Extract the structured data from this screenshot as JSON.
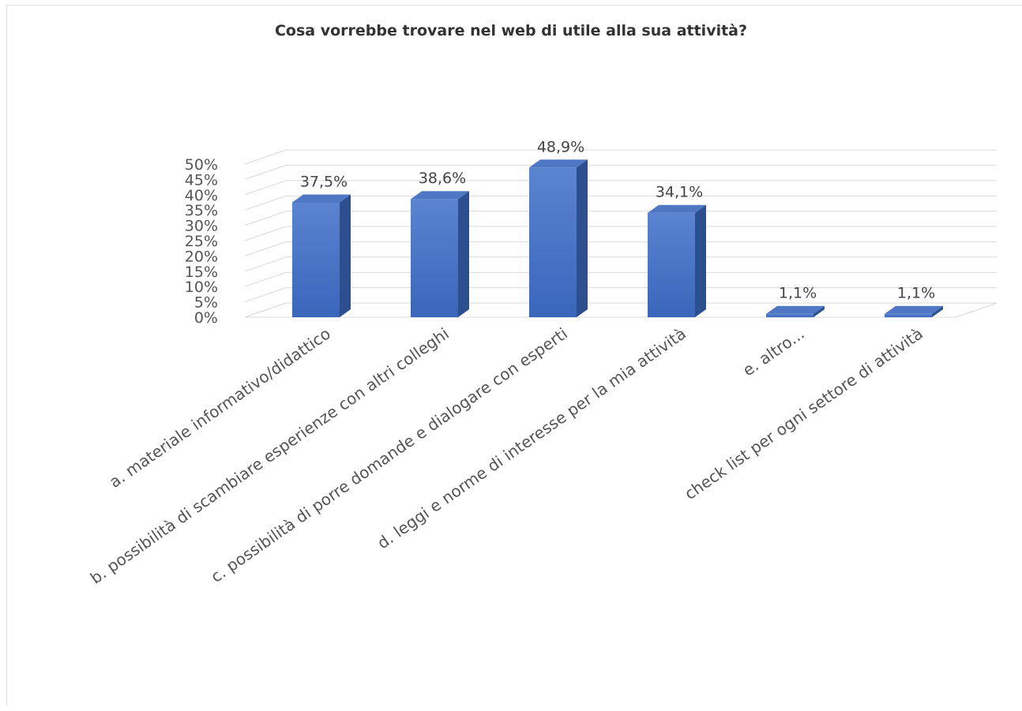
{
  "chart_data": {
    "type": "bar",
    "title": "Cosa vorrebbe trovare nel web di utile alla sua attività?",
    "xlabel": "",
    "ylabel": "",
    "ylim": [
      0,
      50
    ],
    "y_ticks": [
      "0%",
      "5%",
      "10%",
      "15%",
      "20%",
      "25%",
      "30%",
      "35%",
      "40%",
      "45%",
      "50%"
    ],
    "y_tick_values": [
      0,
      5,
      10,
      15,
      20,
      25,
      30,
      35,
      40,
      45,
      50
    ],
    "categories": [
      "a. materiale informativo/didattico",
      "b. possibilità di scambiare esperienze con altri colleghi",
      "c. possibilità di porre domande e dialogare con esperti",
      "d. leggi e norme di interesse per la mia attività",
      "e. altro...",
      "check list per ogni settore di attività"
    ],
    "values": [
      37.5,
      38.6,
      48.9,
      34.1,
      1.1,
      1.1
    ],
    "data_labels": [
      "37,5%",
      "38,6%",
      "48,9%",
      "34,1%",
      "1,1%",
      "1,1%"
    ],
    "bar_color": "#4472c4",
    "grid": true,
    "legend": "none",
    "style": "3d-column"
  }
}
